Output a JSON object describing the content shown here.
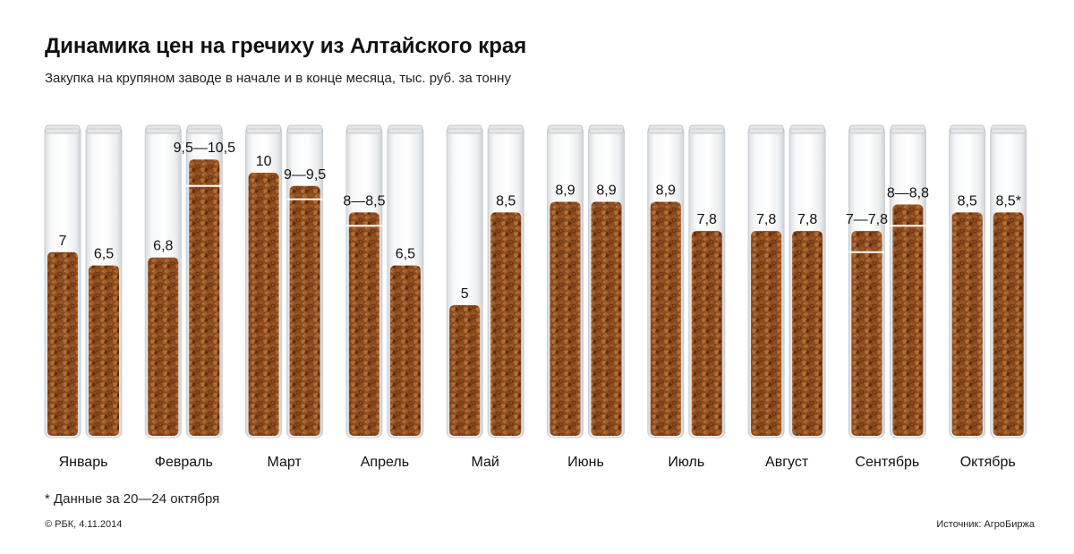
{
  "title": "Динамика цен на гречиху из Алтайского края",
  "subtitle": "Закупка на крупяном заводе в начале и в конце месяца, тыс. руб. за тонну",
  "footnote": "* Данные за 20—24 октября",
  "credit": "© РБК, 4.11.2014",
  "source": "Источник: АгроБиржа",
  "colors": {
    "buckwheat": "#8a4a1e",
    "buckwheat_dark": "#5e2e0e",
    "buckwheat_light": "#b06a30",
    "glass": "#eef0f1",
    "glass_edge": "#c9cdd0"
  },
  "chart_data": {
    "type": "bar",
    "description_unit": "тыс. руб. за тонну",
    "categories": [
      "Январь",
      "Февраль",
      "Март",
      "Апрель",
      "Май",
      "Июнь",
      "Июль",
      "Август",
      "Сентябрь",
      "Октябрь"
    ],
    "series": [
      {
        "values": [
          7,
          6.8,
          10,
          8.25,
          5,
          8.9,
          8.9,
          7.8,
          7.4,
          8.5
        ],
        "range_low": [
          7,
          6.8,
          10,
          8,
          5,
          8.9,
          8.9,
          7.8,
          7,
          8.5
        ],
        "range_high": [
          7,
          6.8,
          10,
          8.5,
          5,
          8.9,
          8.9,
          7.8,
          7.8,
          8.5
        ],
        "labels": [
          "7",
          "6,8",
          "10",
          "8—8,5",
          "5",
          "8,9",
          "8,9",
          "7,8",
          "7—7,8",
          "8,5"
        ]
      },
      {
        "values": [
          6.5,
          10,
          9.25,
          6.5,
          8.5,
          8.9,
          7.8,
          7.8,
          8.4,
          8.5
        ],
        "range_low": [
          6.5,
          9.5,
          9,
          6.5,
          8.5,
          8.9,
          7.8,
          7.8,
          8,
          8.5
        ],
        "range_high": [
          6.5,
          10.5,
          9.5,
          6.5,
          8.5,
          8.9,
          7.8,
          7.8,
          8.8,
          8.5
        ],
        "labels": [
          "6,5",
          "9,5—10,5",
          "9—9,5",
          "6,5",
          "8,5",
          "8,9",
          "7,8",
          "7,8",
          "8—8,8",
          "8,5*"
        ]
      }
    ],
    "ylim": [
      0,
      14
    ],
    "xlabel": "",
    "ylabel": ""
  }
}
